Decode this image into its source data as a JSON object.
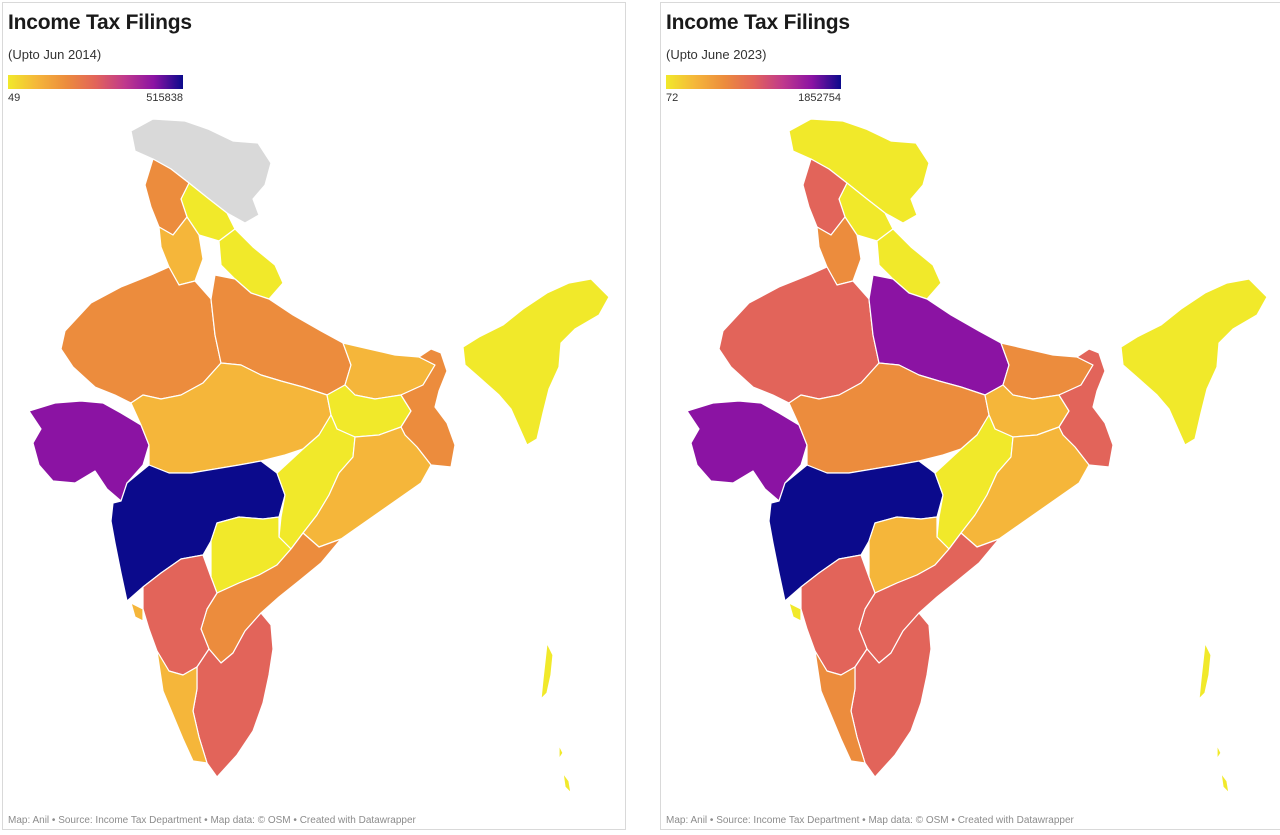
{
  "colors": {
    "scale": [
      "#f1e92a",
      "#f5b63a",
      "#ec8c3d",
      "#e2645a",
      "#c0398c",
      "#8b13a3",
      "#0b0a8c"
    ],
    "no_data": "#d9d9d9"
  },
  "panels": [
    {
      "title": "Income Tax Filings",
      "subtitle": "(Upto Jun 2014)",
      "legend_min": "49",
      "legend_max": "515838",
      "footer": "Map: Anil • Source: Income Tax Department • Map data: © OSM • Created with Datawrapper",
      "region_levels": {
        "jk": -1,
        "hp": 0,
        "pb": 2,
        "hr": 1,
        "uk": 0,
        "rj": 2,
        "up": 2,
        "gj": 5,
        "mp": 1,
        "bh": 1,
        "jh": 0,
        "wb": 2,
        "ne": 0,
        "mh": 6,
        "cg": 0,
        "od": 1,
        "ts": 0,
        "ap": 2,
        "ka": 3,
        "tn": 3,
        "kl": 1,
        "ga": 1,
        "isl": 0
      }
    },
    {
      "title": "Income Tax Filings",
      "subtitle": "(Upto June 2023)",
      "legend_min": "72",
      "legend_max": "1852754",
      "footer": "Map: Anil • Source: Income Tax Department • Map data: © OSM • Created with Datawrapper",
      "region_levels": {
        "jk": 0,
        "hp": 0,
        "pb": 3,
        "hr": 2,
        "uk": 0,
        "rj": 3,
        "up": 5,
        "gj": 5,
        "mp": 2,
        "bh": 2,
        "jh": 1,
        "wb": 3,
        "ne": 0,
        "mh": 6,
        "cg": 0,
        "od": 1,
        "ts": 1,
        "ap": 3,
        "ka": 3,
        "tn": 3,
        "kl": 2,
        "ga": 0,
        "isl": 0
      }
    }
  ]
}
